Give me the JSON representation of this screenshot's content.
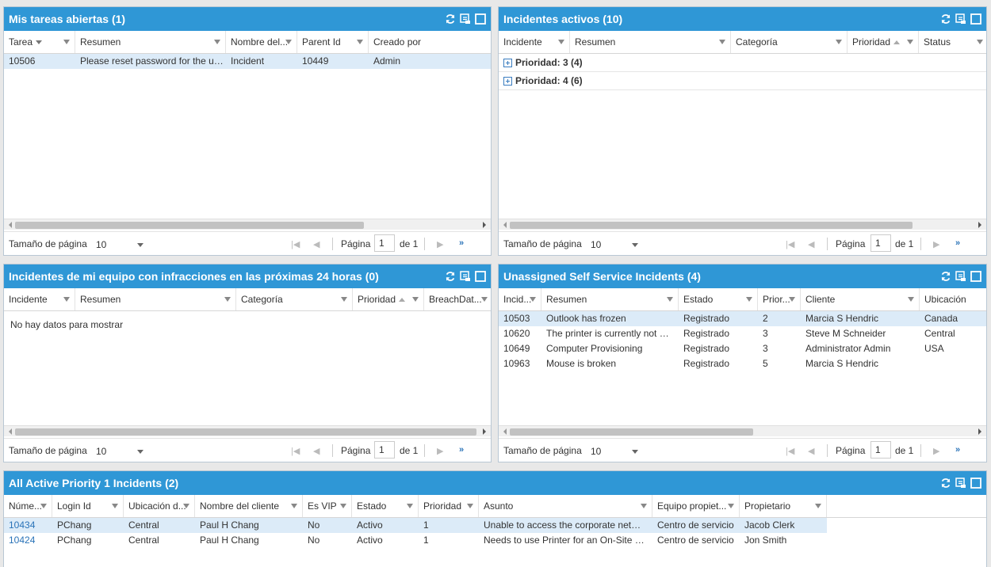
{
  "pager": {
    "page_size_label": "Tamaño de página",
    "page_size_value": "10",
    "page_label": "Página",
    "page_value": "1",
    "of_label": "de 1",
    "last_symbol": "»"
  },
  "nodata": "No hay datos para mostrar",
  "p1": {
    "title": "Mis tareas abiertas (1)",
    "cols": [
      "Tarea",
      "Resumen",
      "Nombre del...",
      "Parent Id",
      "Creado por"
    ],
    "rows": [
      [
        "10506",
        "Please reset password for the user",
        "Incident",
        "10449",
        "Admin"
      ]
    ]
  },
  "p2": {
    "title": "Incidentes activos (10)",
    "cols": [
      "Incidente",
      "Resumen",
      "Categoría",
      "Prioridad",
      "Status"
    ],
    "groups": [
      "Prioridad: 3 (4)",
      "Prioridad: 4 (6)"
    ]
  },
  "p3": {
    "title": "Incidentes de mi equipo con infracciones en las próximas 24 horas (0)",
    "cols": [
      "Incidente",
      "Resumen",
      "Categoría",
      "Prioridad",
      "BreachDat..."
    ]
  },
  "p4": {
    "title": "Unassigned Self Service Incidents (4)",
    "cols": [
      "Incid...",
      "Resumen",
      "Estado",
      "Prior...",
      "Cliente",
      "Ubicación"
    ],
    "rows": [
      [
        "10503",
        "Outlook has frozen",
        "Registrado",
        "2",
        "Marcia S Hendric",
        "Canada"
      ],
      [
        "10620",
        "The printer is currently not working",
        "Registrado",
        "3",
        "Steve M Schneider",
        "Central"
      ],
      [
        "10649",
        "Computer Provisioning",
        "Registrado",
        "3",
        "Administrator Admin",
        "USA"
      ],
      [
        "10963",
        "Mouse is broken",
        "Registrado",
        "5",
        "Marcia S Hendric",
        ""
      ]
    ]
  },
  "p5": {
    "title": "All Active Priority 1 Incidents (2)",
    "cols": [
      "Núme...",
      "Login Id",
      "Ubicación d...",
      "Nombre del cliente",
      "Es VIP",
      "Estado",
      "Prioridad",
      "Asunto",
      "Equipo propiet...",
      "Propietario"
    ],
    "rows": [
      [
        "10434",
        "PChang",
        "Central",
        "Paul H Chang",
        "No",
        "Activo",
        "1",
        "Unable to access the corporate network",
        "Centro de servicio",
        "Jacob Clerk"
      ],
      [
        "10424",
        "PChang",
        "Central",
        "Paul H Chang",
        "No",
        "Activo",
        "1",
        "Needs to use Printer for an On-Site meeting",
        "Centro de servicio",
        "Jon Smith"
      ]
    ]
  },
  "colors": {
    "header": "#2f97d6",
    "selected_row": "#dcebf8",
    "link": "#2a73b8"
  },
  "icons": [
    "refresh-icon",
    "popout-icon",
    "maximize-icon"
  ]
}
